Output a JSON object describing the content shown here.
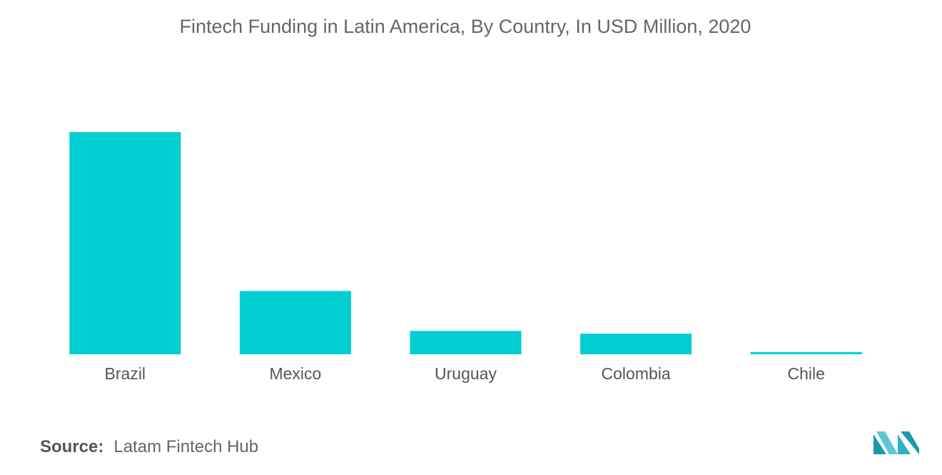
{
  "chart_data": {
    "type": "bar",
    "title": "Fintech Funding in Latin America, By Country, In USD Million, 2020",
    "categories": [
      "Brazil",
      "Mexico",
      "Uruguay",
      "Colombia",
      "Chile"
    ],
    "values": [
      1000,
      285,
      105,
      93,
      10
    ],
    "xlabel": "",
    "ylabel": "",
    "ylim": [
      0,
      1000
    ],
    "grid": false,
    "bar_color": "#00CED1"
  },
  "source": {
    "label": "Source:",
    "text": "Latam Fintech Hub"
  },
  "logo": {
    "icon": "mordor-intelligence-logo",
    "colors": [
      "#1B9AAA",
      "#2DB3C4",
      "#5BC8D6"
    ]
  }
}
